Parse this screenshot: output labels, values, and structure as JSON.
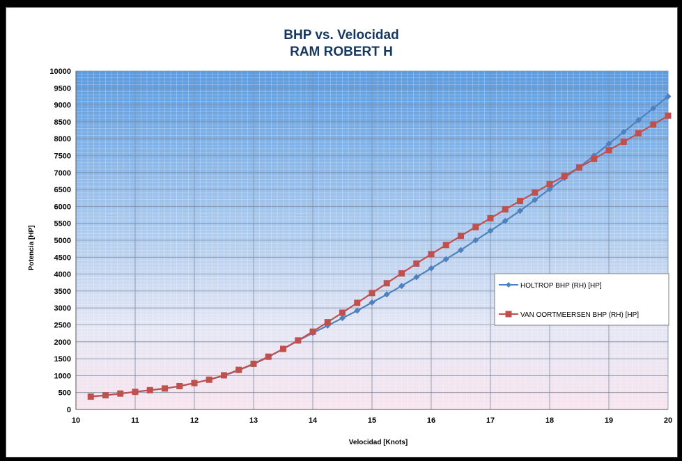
{
  "chart_data": {
    "type": "line",
    "title": "BHP vs. Velocidad",
    "subtitle": "RAM ROBERT H",
    "xlabel": "Velocidad [Knots]",
    "ylabel": "Potencia [HP]",
    "xlim": [
      10,
      20
    ],
    "ylim": [
      0,
      10000
    ],
    "xticks": [
      10,
      11,
      12,
      13,
      14,
      15,
      16,
      17,
      18,
      19,
      20
    ],
    "yticks": [
      0,
      500,
      1000,
      1500,
      2000,
      2500,
      3000,
      3500,
      4000,
      4500,
      5000,
      5500,
      6000,
      6500,
      7000,
      7500,
      8000,
      8500,
      9000,
      9500,
      10000
    ],
    "grid": true,
    "legend_position": "right",
    "x": [
      10.25,
      10.5,
      10.75,
      11,
      11.25,
      11.5,
      11.75,
      12,
      12.25,
      12.5,
      12.75,
      13,
      13.25,
      13.5,
      13.75,
      14,
      14.25,
      14.5,
      14.75,
      15,
      15.25,
      15.5,
      15.75,
      16,
      16.25,
      16.5,
      16.75,
      17,
      17.25,
      17.5,
      17.75,
      18,
      18.25,
      18.5,
      18.75,
      19,
      19.25,
      19.5,
      19.75,
      20
    ],
    "series": [
      {
        "name": "HOLTROP BHP  (RH) [HP]",
        "color": "#4f81bd",
        "marker": "diamond",
        "values": [
          380,
          420,
          470,
          520,
          570,
          620,
          690,
          780,
          880,
          1000,
          1160,
          1340,
          1550,
          1790,
          2030,
          2260,
          2480,
          2700,
          2920,
          3160,
          3400,
          3650,
          3910,
          4170,
          4440,
          4710,
          5000,
          5280,
          5570,
          5870,
          6190,
          6510,
          6840,
          7160,
          7500,
          7850,
          8200,
          8550,
          8900,
          9250
        ]
      },
      {
        "name": "VAN OORTMEERSEN BHP  (RH) [HP]",
        "color": "#c0504d",
        "marker": "square",
        "values": [
          380,
          420,
          470,
          520,
          570,
          620,
          690,
          780,
          880,
          1010,
          1170,
          1350,
          1560,
          1790,
          2040,
          2300,
          2580,
          2860,
          3150,
          3440,
          3730,
          4020,
          4310,
          4590,
          4860,
          5130,
          5390,
          5650,
          5910,
          6160,
          6410,
          6660,
          6900,
          7150,
          7400,
          7660,
          7910,
          8160,
          8420,
          8680
        ]
      }
    ]
  }
}
